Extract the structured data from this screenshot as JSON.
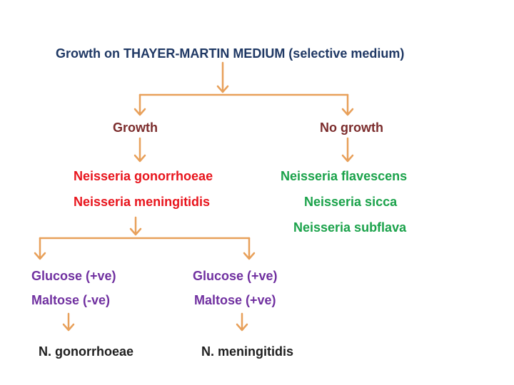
{
  "colors": {
    "heading": "#1f3864",
    "branch": "#7b2c2c",
    "positive": "#e8141c",
    "negative": "#1aa24a",
    "test": "#7030a0",
    "result": "#1f1f1f",
    "arrow": "#e8a05a"
  },
  "title": "Growth on THAYER-MARTIN MEDIUM (selective medium)",
  "branches": {
    "growth": "Growth",
    "no_growth": "No growth"
  },
  "growth_species": [
    "Neisseria gonorrhoeae",
    "Neisseria meningitidis"
  ],
  "no_growth_species": [
    "Neisseria flavescens",
    "Neisseria sicca",
    "Neisseria subflava"
  ],
  "tests": {
    "left": {
      "glucose": "Glucose (+ve)",
      "maltose": "Maltose (-ve)"
    },
    "right": {
      "glucose": "Glucose (+ve)",
      "maltose": "Maltose (+ve)"
    }
  },
  "results": {
    "left": "N. gonorrhoeae",
    "right": "N. meningitidis"
  }
}
